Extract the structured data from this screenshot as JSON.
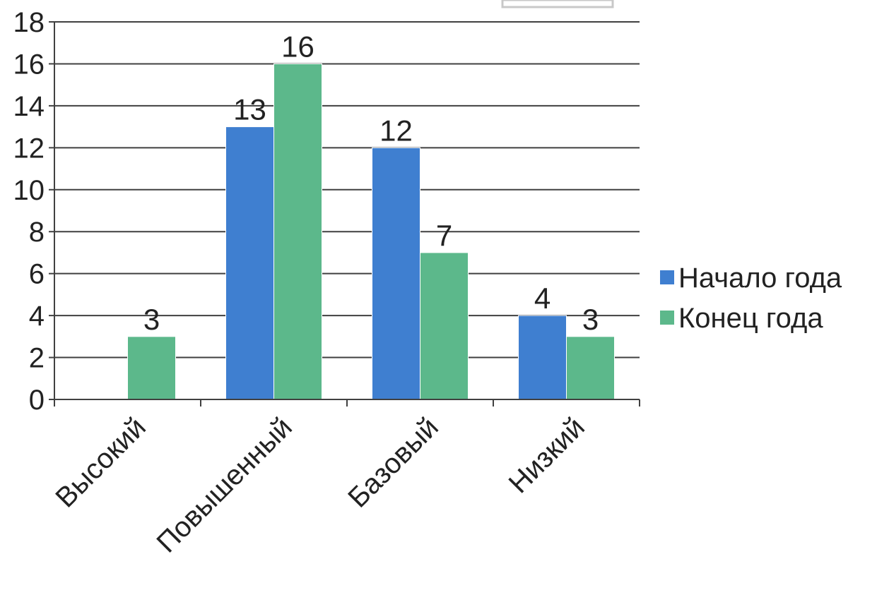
{
  "chart_data": {
    "type": "bar",
    "title": "",
    "xlabel": "",
    "ylabel": "",
    "categories": [
      "Высокий",
      "Повышенный",
      "Базовый",
      "Низкий"
    ],
    "series": [
      {
        "name": "Начало года",
        "values": [
          null,
          13,
          12,
          4
        ],
        "color": "#3f7fd0"
      },
      {
        "name": "Конец года",
        "values": [
          3,
          16,
          7,
          3
        ],
        "color": "#5cb88b"
      }
    ],
    "ylim": [
      0,
      18
    ],
    "yticks": [
      0,
      2,
      4,
      6,
      8,
      10,
      12,
      14,
      16,
      18
    ],
    "data_labels": true,
    "grid": true,
    "legend_position": "right"
  },
  "colors": {
    "grid": "#404040",
    "axis": "#404040",
    "text": "#222222"
  }
}
